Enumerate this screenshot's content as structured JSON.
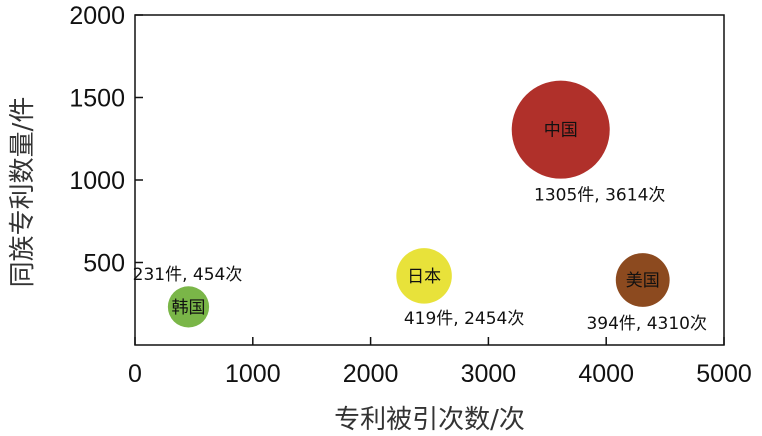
{
  "chart_data": {
    "type": "scatter",
    "title": "",
    "xlabel": "专利被引次数/次",
    "ylabel": "同族专利数量/件",
    "xlim": [
      0,
      5000
    ],
    "ylim": [
      0,
      2000
    ],
    "x_ticks": [
      "0",
      "1000",
      "2000",
      "3000",
      "4000",
      "5000"
    ],
    "y_ticks": [
      "500",
      "1000",
      "1500",
      "2000"
    ],
    "grid": false,
    "points": [
      {
        "name": "韩国",
        "x": 454,
        "y": 231,
        "size": 231,
        "color": "#7ab648",
        "annotation": "231件, 454次"
      },
      {
        "name": "日本",
        "x": 2454,
        "y": 419,
        "size": 419,
        "color": "#e8e23a",
        "annotation": "419件, 2454次"
      },
      {
        "name": "中国",
        "x": 3614,
        "y": 1305,
        "size": 1305,
        "color": "#b0302a",
        "annotation": "1305件, 3614次"
      },
      {
        "name": "美国",
        "x": 4310,
        "y": 394,
        "size": 394,
        "color": "#8c4a1f",
        "annotation": "394件, 4310次"
      }
    ]
  }
}
